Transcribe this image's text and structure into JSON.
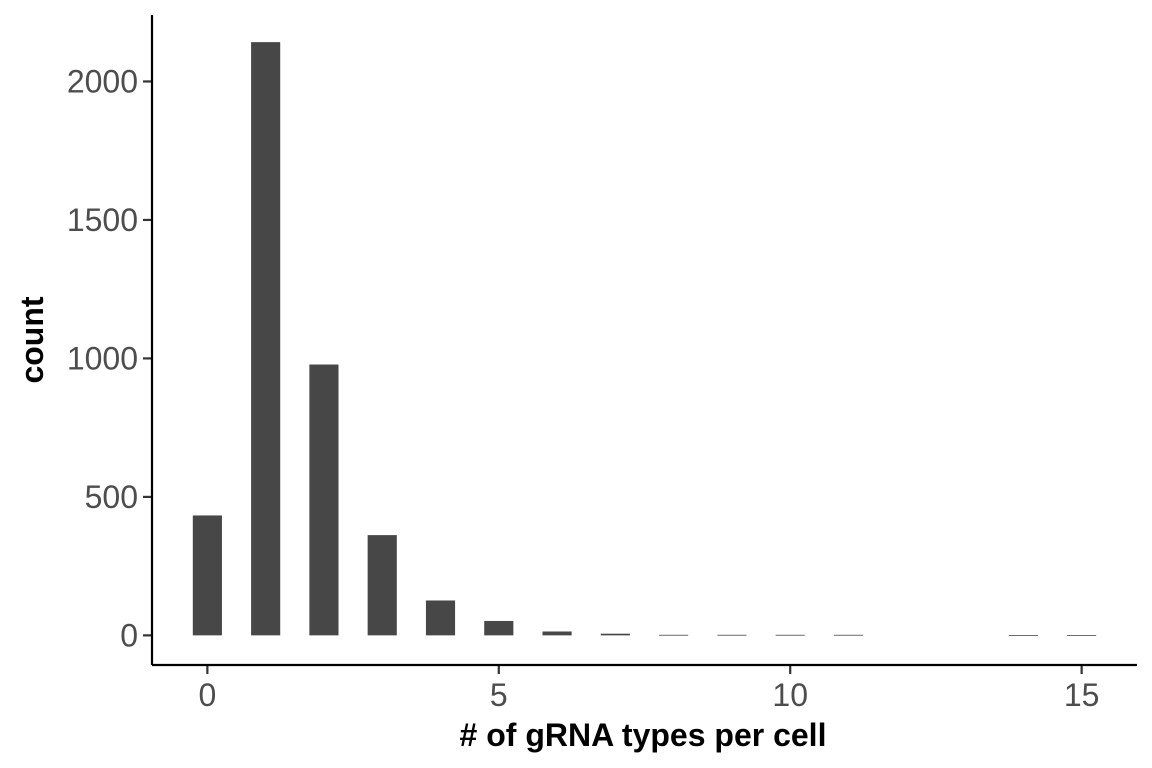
{
  "chart_data": {
    "type": "bar",
    "title": "",
    "xlabel": "# of gRNA types per cell",
    "ylabel": "count",
    "x": [
      0,
      1,
      2,
      3,
      4,
      5,
      6,
      7,
      8,
      9,
      10,
      11,
      12,
      13,
      14,
      15
    ],
    "values": [
      433,
      2142,
      978,
      362,
      126,
      52,
      14,
      6,
      2,
      2,
      2,
      2,
      0,
      0,
      1,
      1
    ],
    "xlim": [
      -0.95,
      15.95
    ],
    "ylim": [
      -107,
      2240
    ],
    "x_ticks": [
      0,
      5,
      10,
      15
    ],
    "x_tick_labels": [
      "0",
      "5",
      "10",
      "15"
    ],
    "y_ticks": [
      0,
      500,
      1000,
      1500,
      2000
    ],
    "y_tick_labels": [
      "0",
      "500",
      "1000",
      "1500",
      "2000"
    ],
    "grid": false,
    "legend": "none",
    "bar_color": "#474747"
  }
}
